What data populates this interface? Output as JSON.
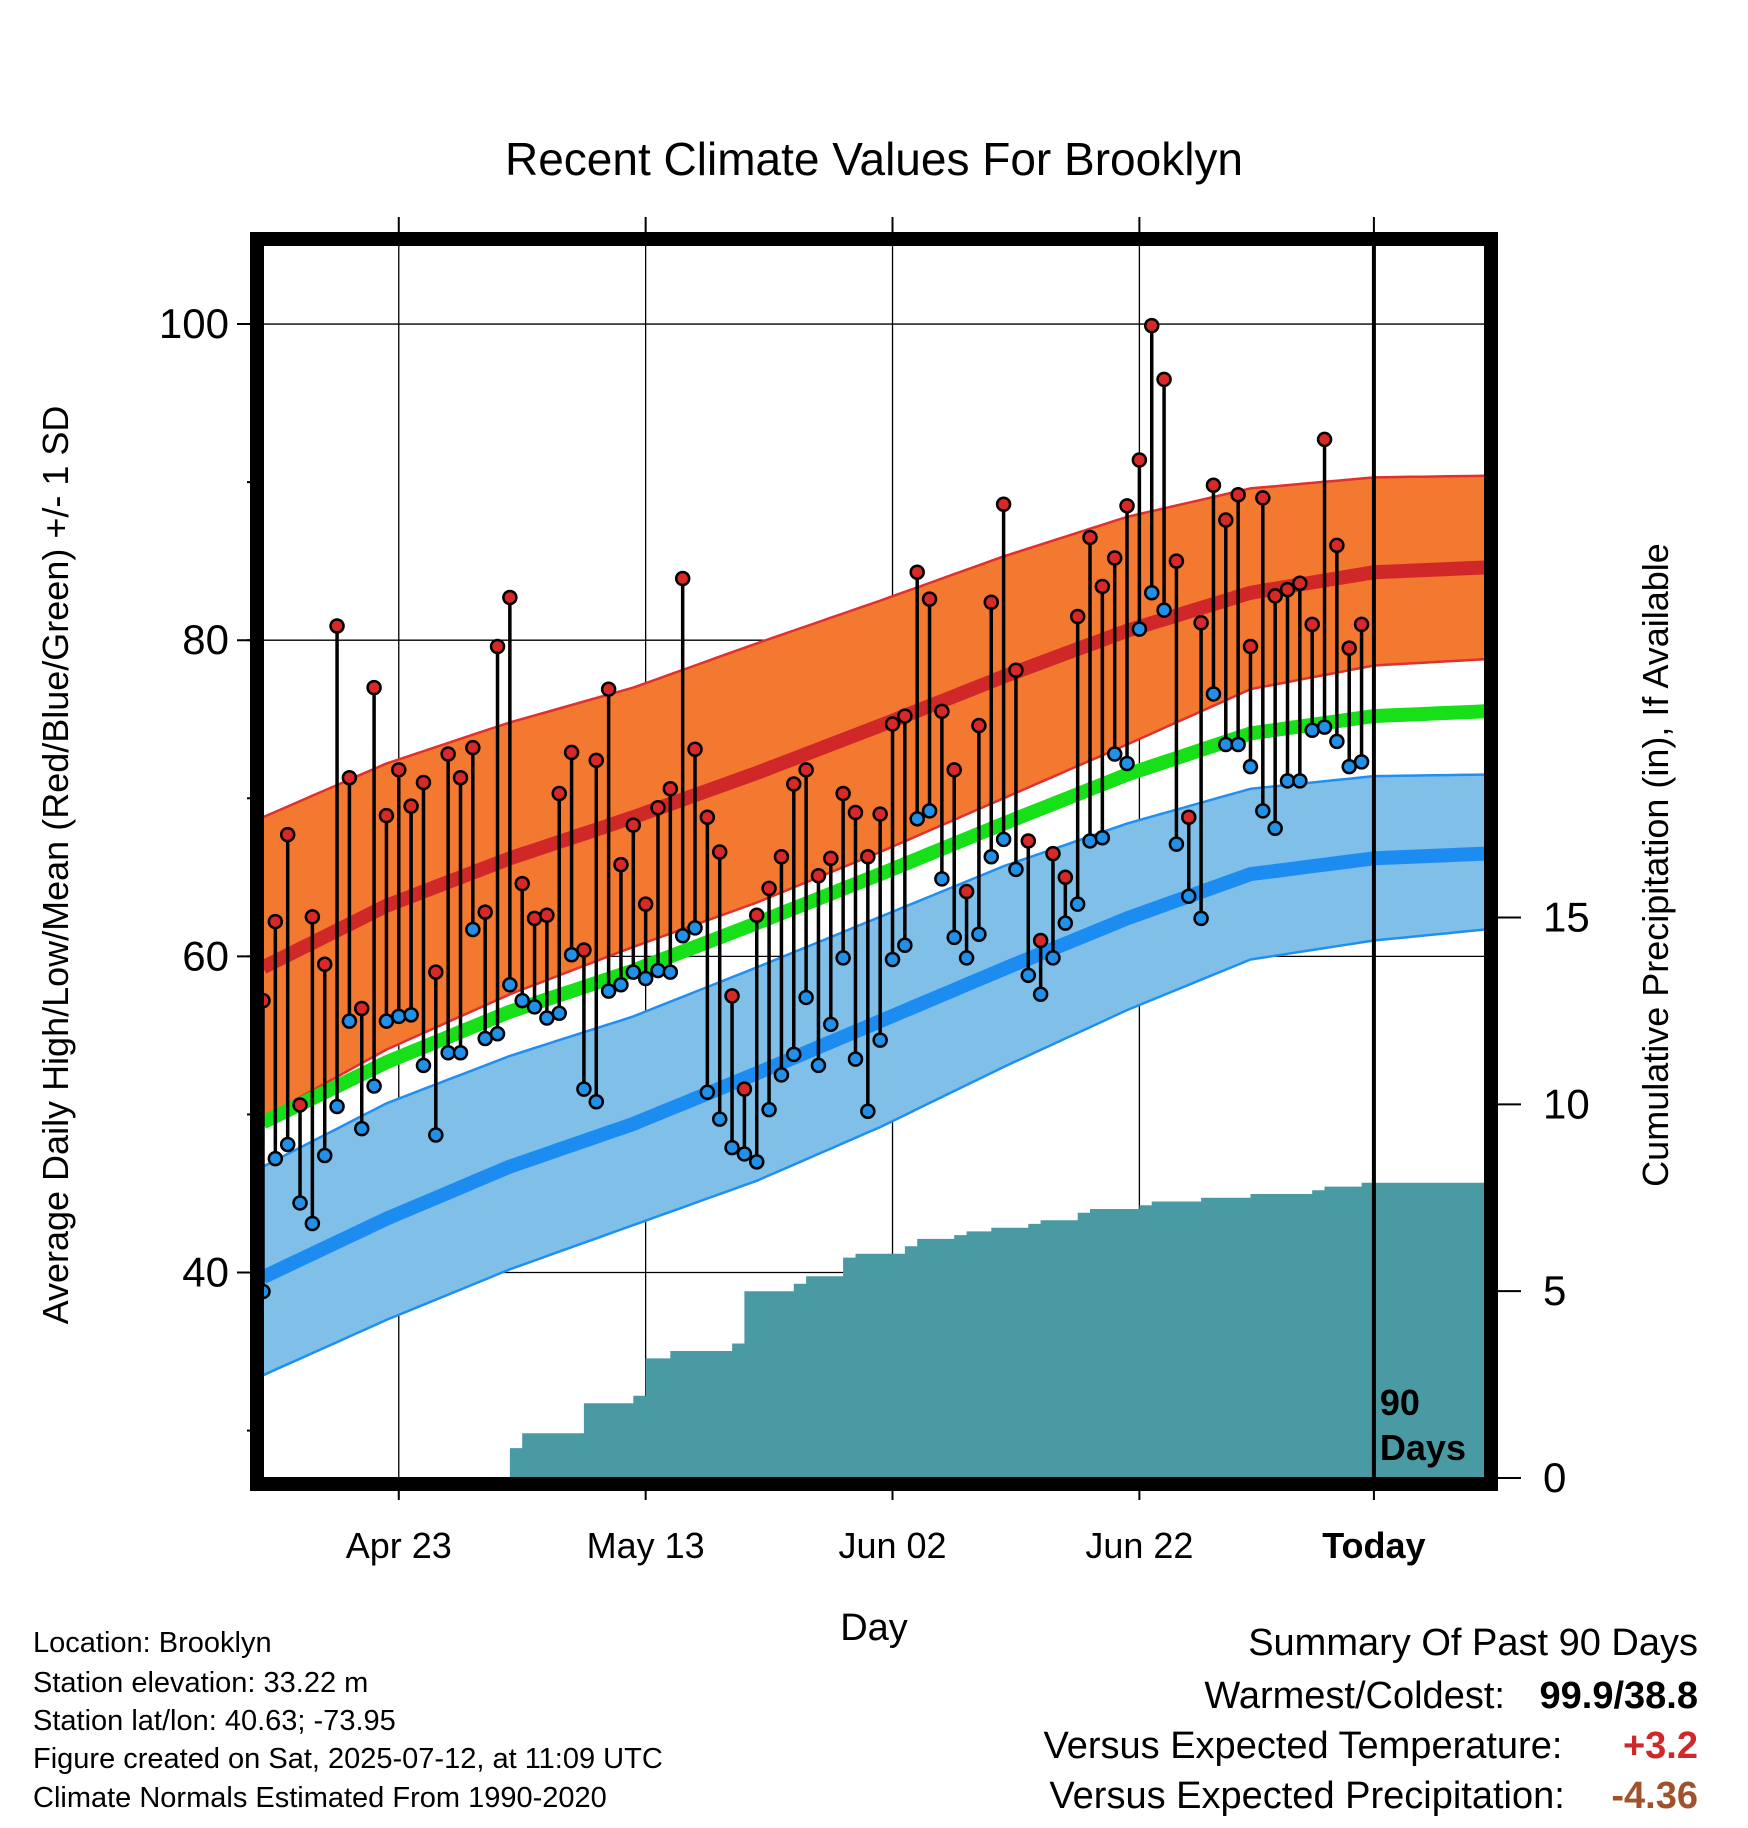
{
  "chart_data": {
    "type": "line",
    "title": "Recent Climate Values For Brooklyn",
    "xlabel": "Day",
    "ylabel_left": "Average Daily High/Low/Mean (Red/Blue/Green) +/- 1 SD",
    "ylabel_right": "Cumulative Precipitation (in), If Available",
    "x_range_days": [
      -90,
      9
    ],
    "x_ticks": [
      {
        "day": -79,
        "label": "Apr 23"
      },
      {
        "day": -59,
        "label": "May 13"
      },
      {
        "day": -39,
        "label": "Jun 02"
      },
      {
        "day": -19,
        "label": "Jun 22"
      },
      {
        "day": 0,
        "label": "Today"
      }
    ],
    "y_left_range": [
      27,
      105
    ],
    "y_left_ticks": [
      40,
      60,
      80,
      100
    ],
    "y_right_range": [
      0,
      33
    ],
    "y_right_ticks": [
      0,
      5,
      10,
      15
    ],
    "today_annotation": "90\nDays",
    "normals": {
      "days": [
        -90,
        -80,
        -70,
        -60,
        -50,
        -40,
        -30,
        -20,
        -10,
        0,
        9
      ],
      "high_mean": [
        59.3,
        63.2,
        66.2,
        68.8,
        71.6,
        74.6,
        77.7,
        80.6,
        83.0,
        84.3,
        84.6
      ],
      "high_plus_sd": [
        68.8,
        72.2,
        74.8,
        77.0,
        79.8,
        82.5,
        85.3,
        87.8,
        89.6,
        90.3,
        90.4
      ],
      "high_minus_sd": [
        49.8,
        54.1,
        57.6,
        60.6,
        63.4,
        66.6,
        70.0,
        73.4,
        76.9,
        78.4,
        78.8
      ],
      "mean": [
        49.5,
        53.3,
        56.5,
        59.1,
        62.1,
        65.2,
        68.4,
        71.5,
        74.1,
        75.2,
        75.5
      ],
      "low_mean": [
        39.7,
        43.4,
        46.7,
        49.4,
        52.6,
        55.9,
        59.2,
        62.4,
        65.2,
        66.2,
        66.5
      ],
      "low_plus_sd": [
        46.7,
        50.7,
        53.7,
        56.2,
        59.3,
        62.5,
        65.7,
        68.4,
        70.6,
        71.4,
        71.5
      ],
      "low_minus_sd": [
        33.5,
        37.0,
        40.2,
        43.0,
        45.8,
        49.2,
        53.0,
        56.6,
        59.8,
        61.0,
        61.7
      ]
    },
    "observed": {
      "start_day": -90,
      "high": [
        57.2,
        62.2,
        67.7,
        50.6,
        62.5,
        59.5,
        80.9,
        71.3,
        56.7,
        77.0,
        68.9,
        71.8,
        69.5,
        71.0,
        59.0,
        72.8,
        71.3,
        73.2,
        62.8,
        79.6,
        82.7,
        64.6,
        62.4,
        62.6,
        70.3,
        72.9,
        60.4,
        72.4,
        76.9,
        65.8,
        68.3,
        63.3,
        69.4,
        70.6,
        83.9,
        73.1,
        68.8,
        66.6,
        57.5,
        51.6,
        62.6,
        64.3,
        66.3,
        70.9,
        71.8,
        65.1,
        66.2,
        70.3,
        69.1,
        66.3,
        69.0,
        74.7,
        75.2,
        84.3,
        82.6,
        75.5,
        71.8,
        64.1,
        74.6,
        82.4,
        88.6,
        78.1,
        67.3,
        61.0,
        66.5,
        65.0,
        81.5,
        86.5,
        83.4,
        85.2,
        88.5,
        91.4,
        99.9,
        96.5,
        85.0,
        68.8,
        81.1,
        89.8,
        87.6,
        89.2,
        79.6,
        89.0,
        82.8,
        83.2,
        83.6,
        81.0,
        92.7,
        86.0,
        79.5,
        81.0
      ],
      "low": [
        38.8,
        47.2,
        48.1,
        44.4,
        43.1,
        47.4,
        50.5,
        55.9,
        49.1,
        51.8,
        55.9,
        56.2,
        56.3,
        53.1,
        48.7,
        53.9,
        53.9,
        61.7,
        54.8,
        55.1,
        58.2,
        57.2,
        56.8,
        56.1,
        56.4,
        60.1,
        51.6,
        50.8,
        57.8,
        58.2,
        59.0,
        58.6,
        59.1,
        59.0,
        61.3,
        61.8,
        51.4,
        49.7,
        47.9,
        47.5,
        47.0,
        50.3,
        52.5,
        53.8,
        57.4,
        53.1,
        55.7,
        59.9,
        53.5,
        50.2,
        54.7,
        59.8,
        60.7,
        68.7,
        69.2,
        64.9,
        61.2,
        59.9,
        61.4,
        66.3,
        67.4,
        65.5,
        58.8,
        57.6,
        59.9,
        62.1,
        63.3,
        67.3,
        67.5,
        72.8,
        72.2,
        80.7,
        83.0,
        81.9,
        67.1,
        63.8,
        62.4,
        76.6,
        73.4,
        73.4,
        72.0,
        69.2,
        68.1,
        71.1,
        71.1,
        74.3,
        74.5,
        73.6,
        72.0,
        72.3
      ]
    },
    "precip_cumulative": {
      "days": [
        -90,
        -71,
        -70,
        -69,
        -68,
        -67,
        -65,
        -64,
        -62,
        -61,
        -60,
        -59,
        -58,
        -57,
        -56,
        -55,
        -52,
        -51,
        -49,
        -48,
        -47,
        -46,
        -43,
        -42,
        -40,
        -39,
        -38,
        -37,
        -34,
        -33,
        -31,
        -30,
        -28,
        -27,
        -25,
        -24,
        -23,
        -19,
        -18,
        -15,
        -14,
        -12,
        -11,
        -10,
        -8,
        -5,
        -4,
        -2,
        -1,
        0,
        9
      ],
      "values": [
        0,
        0,
        0.8,
        1.2,
        1.2,
        1.2,
        1.2,
        2.0,
        2.0,
        2.0,
        2.2,
        3.2,
        3.2,
        3.4,
        3.4,
        3.4,
        3.6,
        5.0,
        5.0,
        5.0,
        5.2,
        5.4,
        5.9,
        6.0,
        6.0,
        6.0,
        6.2,
        6.4,
        6.5,
        6.6,
        6.7,
        6.7,
        6.8,
        6.9,
        6.9,
        7.1,
        7.2,
        7.3,
        7.4,
        7.4,
        7.5,
        7.5,
        7.5,
        7.6,
        7.6,
        7.7,
        7.8,
        7.8,
        7.9,
        7.9,
        7.9
      ]
    }
  },
  "colors": {
    "high_band": "#f47930",
    "high_line": "#d02828",
    "high_band_edge": "#e03030",
    "mean_line": "#18e018",
    "low_band": "#80c0e8",
    "low_line": "#1c8cf0",
    "low_band_edge": "#2090f0",
    "precip": "#4a9aa3",
    "high_marker": "#d82828",
    "low_marker": "#2090e8"
  },
  "info": {
    "location": "Location: Brooklyn",
    "elevation": "Station elevation: 33.22 m",
    "latlon": "Station lat/lon: 40.63; -73.95",
    "created": "Figure created on Sat, 2025-07-12, at 11:09 UTC",
    "normals_period": "Climate Normals Estimated From 1990-2020"
  },
  "summary": {
    "title": "Summary Of Past 90 Days",
    "warmest_label": "Warmest/Coldest:",
    "warmest_value": "99.9/38.8",
    "temp_label": "Versus Expected Temperature:",
    "temp_value": "+3.2",
    "temp_color": "#d02828",
    "precip_label": "Versus Expected Precipitation:",
    "precip_value": "-4.36",
    "precip_color": "#a0522d"
  }
}
